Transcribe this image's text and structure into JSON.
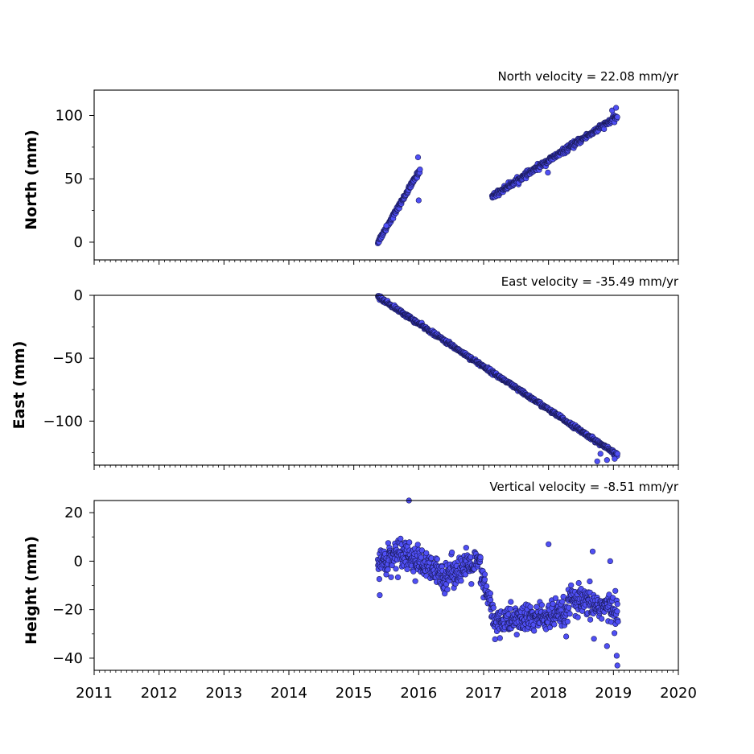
{
  "chart_data": [
    {
      "type": "scatter",
      "title": "North velocity = 22.08 mm/yr",
      "ylabel": "North (mm)",
      "xlim": [
        2011,
        2020
      ],
      "ylim": [
        -14,
        120
      ],
      "yticks": [
        0,
        50,
        100
      ],
      "x_ticks_labeled": false,
      "marker_color": "#4f4ff5",
      "edge_color": "#1a1a5a",
      "segments": [
        {
          "x_start": 2015.37,
          "x_end": 2016.02,
          "y_start": 0,
          "y_end": 57,
          "noise": 1.5
        },
        {
          "x_start": 2017.13,
          "x_end": 2019.06,
          "y_start": 36,
          "y_end": 99,
          "noise": 1.8
        }
      ],
      "outliers": [
        [
          2015.99,
          67
        ],
        [
          2016.0,
          33
        ],
        [
          2017.99,
          55
        ],
        [
          2018.98,
          104
        ],
        [
          2019.04,
          106
        ],
        [
          2015.5,
          13
        ]
      ]
    },
    {
      "type": "scatter",
      "title": "East velocity = -35.49 mm/yr",
      "ylabel": "East (mm)",
      "xlim": [
        2011,
        2020
      ],
      "ylim": [
        -135,
        0
      ],
      "yticks": [
        0,
        -50,
        -100
      ],
      "x_ticks_labeled": false,
      "marker_color": "#4f4ff5",
      "edge_color": "#1a1a5a",
      "segments": [
        {
          "x_start": 2015.37,
          "x_end": 2019.06,
          "y_start": -1,
          "y_end": -127,
          "noise": 1.2
        }
      ],
      "outliers": [
        [
          2018.75,
          -132
        ],
        [
          2018.9,
          -131
        ],
        [
          2019.02,
          -130
        ],
        [
          2018.8,
          -126
        ]
      ]
    },
    {
      "type": "scatter",
      "title": "Vertical velocity = -8.51 mm/yr",
      "ylabel": "Height (mm)",
      "xlim": [
        2011,
        2020
      ],
      "ylim": [
        -45,
        25
      ],
      "yticks": [
        20,
        0,
        -20,
        -40
      ],
      "x_ticks_labeled": true,
      "xticks": [
        "2011",
        "2012",
        "2013",
        "2014",
        "2015",
        "2016",
        "2017",
        "2018",
        "2019",
        "2020"
      ],
      "marker_color": "#4f4ff5",
      "edge_color": "#1a1a5a",
      "segments": [
        {
          "x_start": 2015.37,
          "x_end": 2015.8,
          "y_start": -1,
          "y_end": 5,
          "noise": 5
        },
        {
          "x_start": 2015.8,
          "x_end": 2016.4,
          "y_start": 3,
          "y_end": -7,
          "noise": 5
        },
        {
          "x_start": 2016.4,
          "x_end": 2016.95,
          "y_start": -5,
          "y_end": -1,
          "noise": 5
        },
        {
          "x_start": 2016.95,
          "x_end": 2017.15,
          "y_start": -5,
          "y_end": -22,
          "noise": 5
        },
        {
          "x_start": 2017.15,
          "x_end": 2018.3,
          "y_start": -25,
          "y_end": -22,
          "noise": 5
        },
        {
          "x_start": 2018.3,
          "x_end": 2019.07,
          "y_start": -16,
          "y_end": -20,
          "noise": 5
        }
      ],
      "outliers": [
        [
          2015.85,
          25
        ],
        [
          2018.0,
          7
        ],
        [
          2018.68,
          4
        ],
        [
          2018.95,
          0
        ],
        [
          2019.05,
          -39
        ],
        [
          2019.06,
          -43
        ],
        [
          2015.4,
          -14
        ],
        [
          2018.7,
          -32
        ],
        [
          2018.9,
          -35
        ]
      ]
    }
  ]
}
